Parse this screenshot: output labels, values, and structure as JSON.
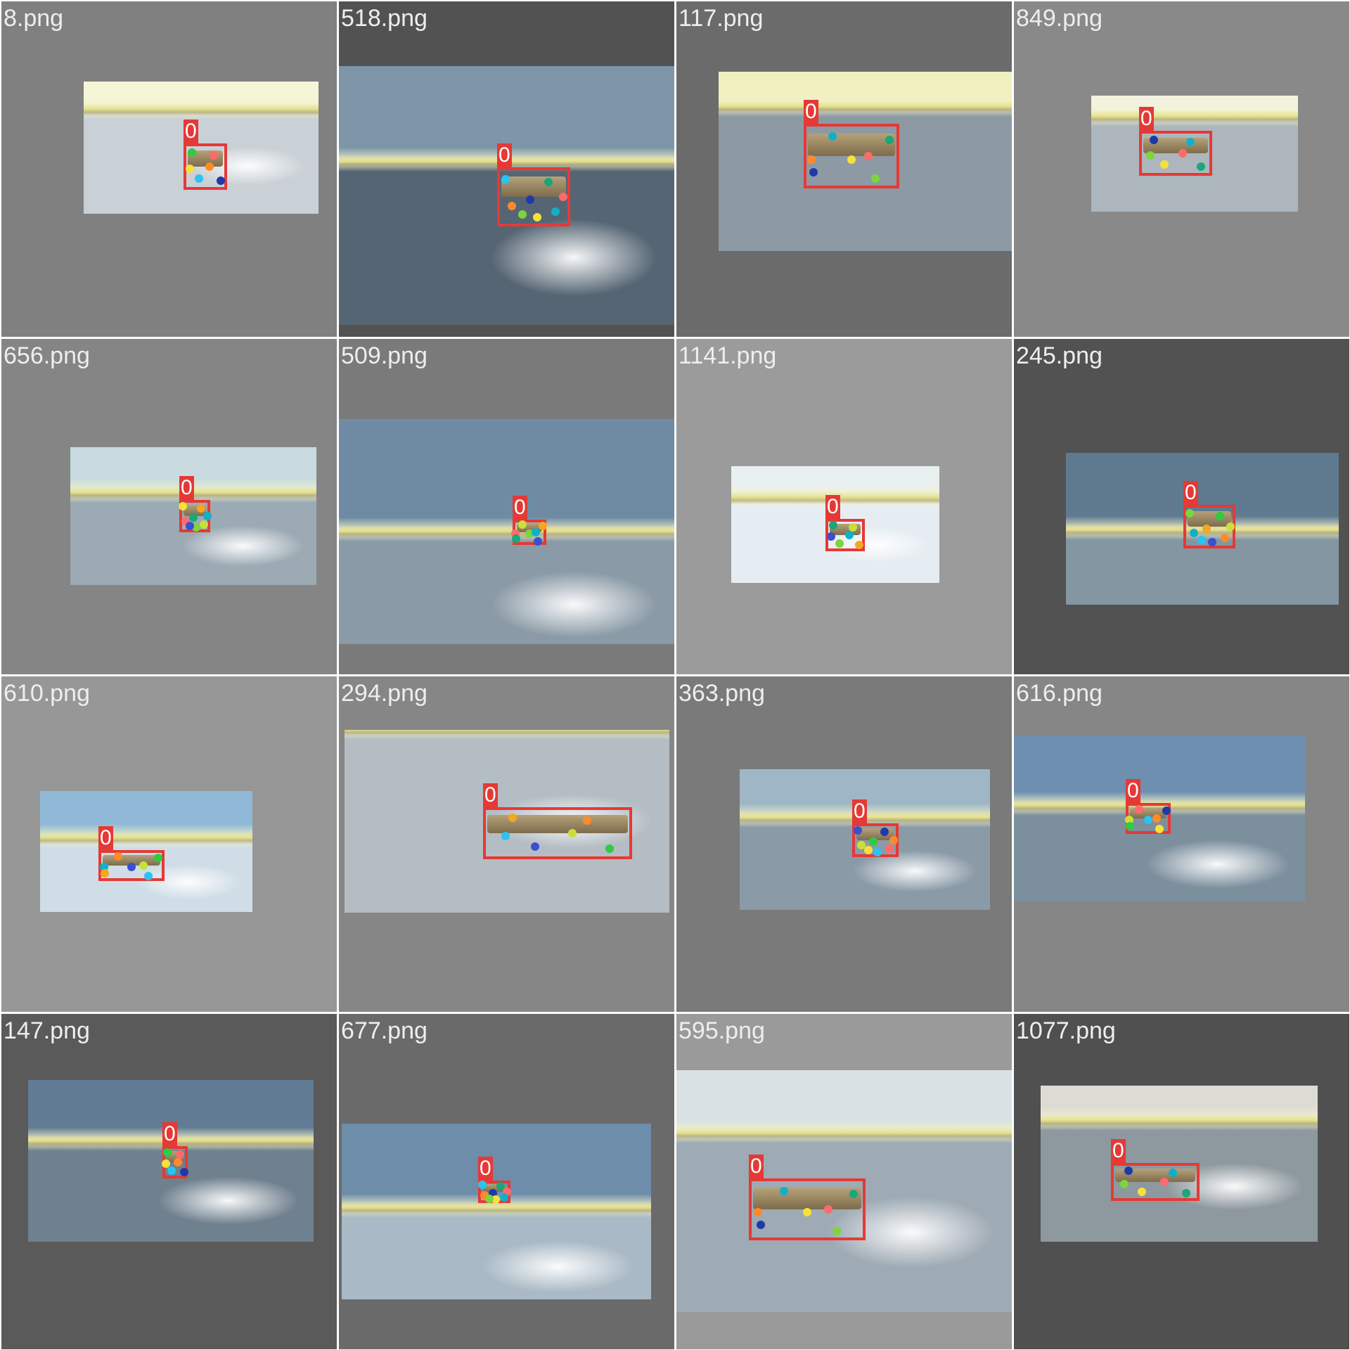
{
  "tiles": [
    {
      "label": "8.png",
      "class_label": "0",
      "tile_bg": "#808080",
      "sky_top": "#f4f6d8",
      "ground": "#c9d0d6"
    },
    {
      "label": "518.png",
      "class_label": "0",
      "tile_bg": "#525252",
      "sky_top": "#7f96a8",
      "ground": "#556573"
    },
    {
      "label": "117.png",
      "class_label": "0",
      "tile_bg": "#6b6b6b",
      "sky_top": "#f0efc0",
      "ground": "#8d9aa4"
    },
    {
      "label": "849.png",
      "class_label": "0",
      "tile_bg": "#898989",
      "sky_top": "#f3f2e0",
      "ground": "#aeb6bd"
    },
    {
      "label": "656.png",
      "class_label": "0",
      "tile_bg": "#858585",
      "sky_top": "#c9dbe0",
      "ground": "#9caab4"
    },
    {
      "label": "509.png",
      "class_label": "0",
      "tile_bg": "#7a7a7a",
      "sky_top": "#6f8ba4",
      "ground": "#8a9aa6"
    },
    {
      "label": "1141.png",
      "class_label": "0",
      "tile_bg": "#9b9b9b",
      "sky_top": "#e9f0f0",
      "ground": "#e6edf2"
    },
    {
      "label": "245.png",
      "class_label": "0",
      "tile_bg": "#525252",
      "sky_top": "#5f7a8f",
      "ground": "#8396a2"
    },
    {
      "label": "610.png",
      "class_label": "0",
      "tile_bg": "#979797",
      "sky_top": "#8fb9d6",
      "ground": "#cfdde6"
    },
    {
      "label": "294.png",
      "class_label": "0",
      "tile_bg": "#868686",
      "sky_top": "#c4ccd2",
      "ground": "#b4bdc3"
    },
    {
      "label": "363.png",
      "class_label": "0",
      "tile_bg": "#7a7a7a",
      "sky_top": "#9fb6c6",
      "ground": "#8a9aa7"
    },
    {
      "label": "616.png",
      "class_label": "0",
      "tile_bg": "#868686",
      "sky_top": "#6e8fb0",
      "ground": "#7c8f9d"
    },
    {
      "label": "147.png",
      "class_label": "0",
      "tile_bg": "#5a5a5a",
      "sky_top": "#607b93",
      "ground": "#6f808e"
    },
    {
      "label": "677.png",
      "class_label": "0",
      "tile_bg": "#6a6a6a",
      "sky_top": "#6d8dab",
      "ground": "#a9b9c5"
    },
    {
      "label": "595.png",
      "class_label": "0",
      "tile_bg": "#9a9a9a",
      "sky_top": "#d9e1e4",
      "ground": "#9eaab4"
    },
    {
      "label": "1077.png",
      "class_label": "0",
      "tile_bg": "#505050",
      "sky_top": "#dcdcd4",
      "ground": "#8e999f"
    }
  ],
  "keypoint_colors": [
    "#2ecc40",
    "#29c4f2",
    "#ff8a2a",
    "#1f3aa8",
    "#f6e13a",
    "#ff6b6b",
    "#1aa77a",
    "#7ad63a",
    "#12b0c8",
    "#f5a623",
    "#3b4fd0",
    "#c8e03a"
  ]
}
